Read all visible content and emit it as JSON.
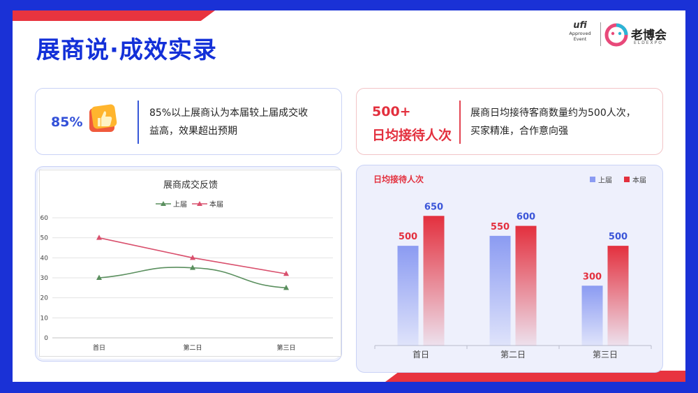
{
  "slide": {
    "title": "展商说·成效实录",
    "accent_blue": "#1330d8",
    "accent_red": "#e8343f"
  },
  "logos": {
    "ufi_word": "ufi",
    "ufi_line1": "Approved",
    "ufi_line2": "Event",
    "eld_name": "老博会",
    "eld_sub": "ELDEXPO"
  },
  "cards": {
    "left": {
      "value": "85%",
      "text_line1": "85%以上展商认为本届较上届成交收",
      "text_line2": "益高，效果超出预期",
      "icon": "thumbs-up-icon"
    },
    "right": {
      "value": "500+",
      "label": "日均接待人次",
      "text_line1": "展商日均接待客商数量约为500人次，",
      "text_line2": "买家精准，合作意向强"
    }
  },
  "chart_data": [
    {
      "type": "line",
      "title": "展商成交反馈",
      "categories": [
        "首日",
        "第二日",
        "第三日"
      ],
      "series": [
        {
          "name": "上届",
          "values": [
            30,
            35,
            25
          ],
          "color": "#5a8f5e"
        },
        {
          "name": "本届",
          "values": [
            50,
            40,
            32
          ],
          "color": "#d9506d"
        }
      ],
      "ylim": [
        0,
        60
      ],
      "yticks": [
        "0",
        "10",
        "20",
        "30",
        "40",
        "50",
        "60"
      ],
      "grid": true,
      "legend": "top-center"
    },
    {
      "type": "bar",
      "title": "日均接待人次",
      "categories": [
        "首日",
        "第二日",
        "第三日"
      ],
      "series": [
        {
          "name": "上届",
          "values": [
            500,
            550,
            300
          ],
          "color": "#8b9bf2"
        },
        {
          "name": "本届",
          "values": [
            650,
            600,
            500
          ],
          "color": "#e3303e"
        }
      ],
      "data_labels": [
        [
          "500",
          "550",
          "300"
        ],
        [
          "650",
          "600",
          "500"
        ]
      ],
      "ylim": [
        0,
        700
      ],
      "grid": false,
      "legend": "top-right"
    }
  ]
}
